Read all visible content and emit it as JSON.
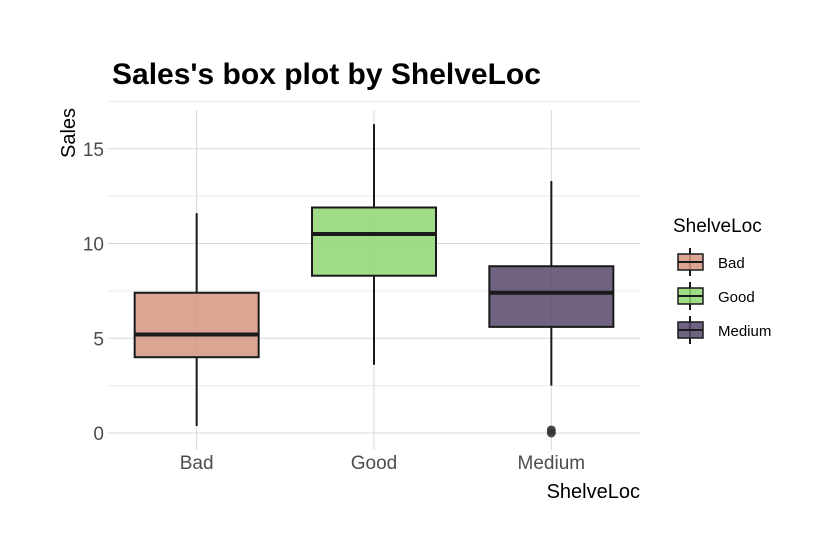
{
  "chart_data": {
    "type": "box",
    "title": "Sales's box plot by ShelveLoc",
    "xlabel": "ShelveLoc",
    "ylabel": "Sales",
    "ylim": [
      -0.5,
      17
    ],
    "yticks": [
      0,
      5,
      10,
      15
    ],
    "grid": true,
    "legend": {
      "title": "ShelveLoc",
      "position": "right"
    },
    "categories": [
      "Bad",
      "Good",
      "Medium"
    ],
    "boxes": [
      {
        "name": "Bad",
        "whisker_low": 0.37,
        "q1": 4.0,
        "median": 5.2,
        "q3": 7.4,
        "whisker_high": 11.6,
        "outliers": [],
        "color": "#d59480"
      },
      {
        "name": "Good",
        "whisker_low": 3.6,
        "q1": 8.3,
        "median": 10.5,
        "q3": 11.9,
        "whisker_high": 16.3,
        "outliers": [],
        "color": "#8fd673"
      },
      {
        "name": "Medium",
        "whisker_low": 2.5,
        "q1": 5.6,
        "median": 7.4,
        "q3": 8.8,
        "whisker_high": 13.3,
        "outliers": [
          0.0,
          0.16
        ],
        "color": "#56486b"
      }
    ]
  }
}
